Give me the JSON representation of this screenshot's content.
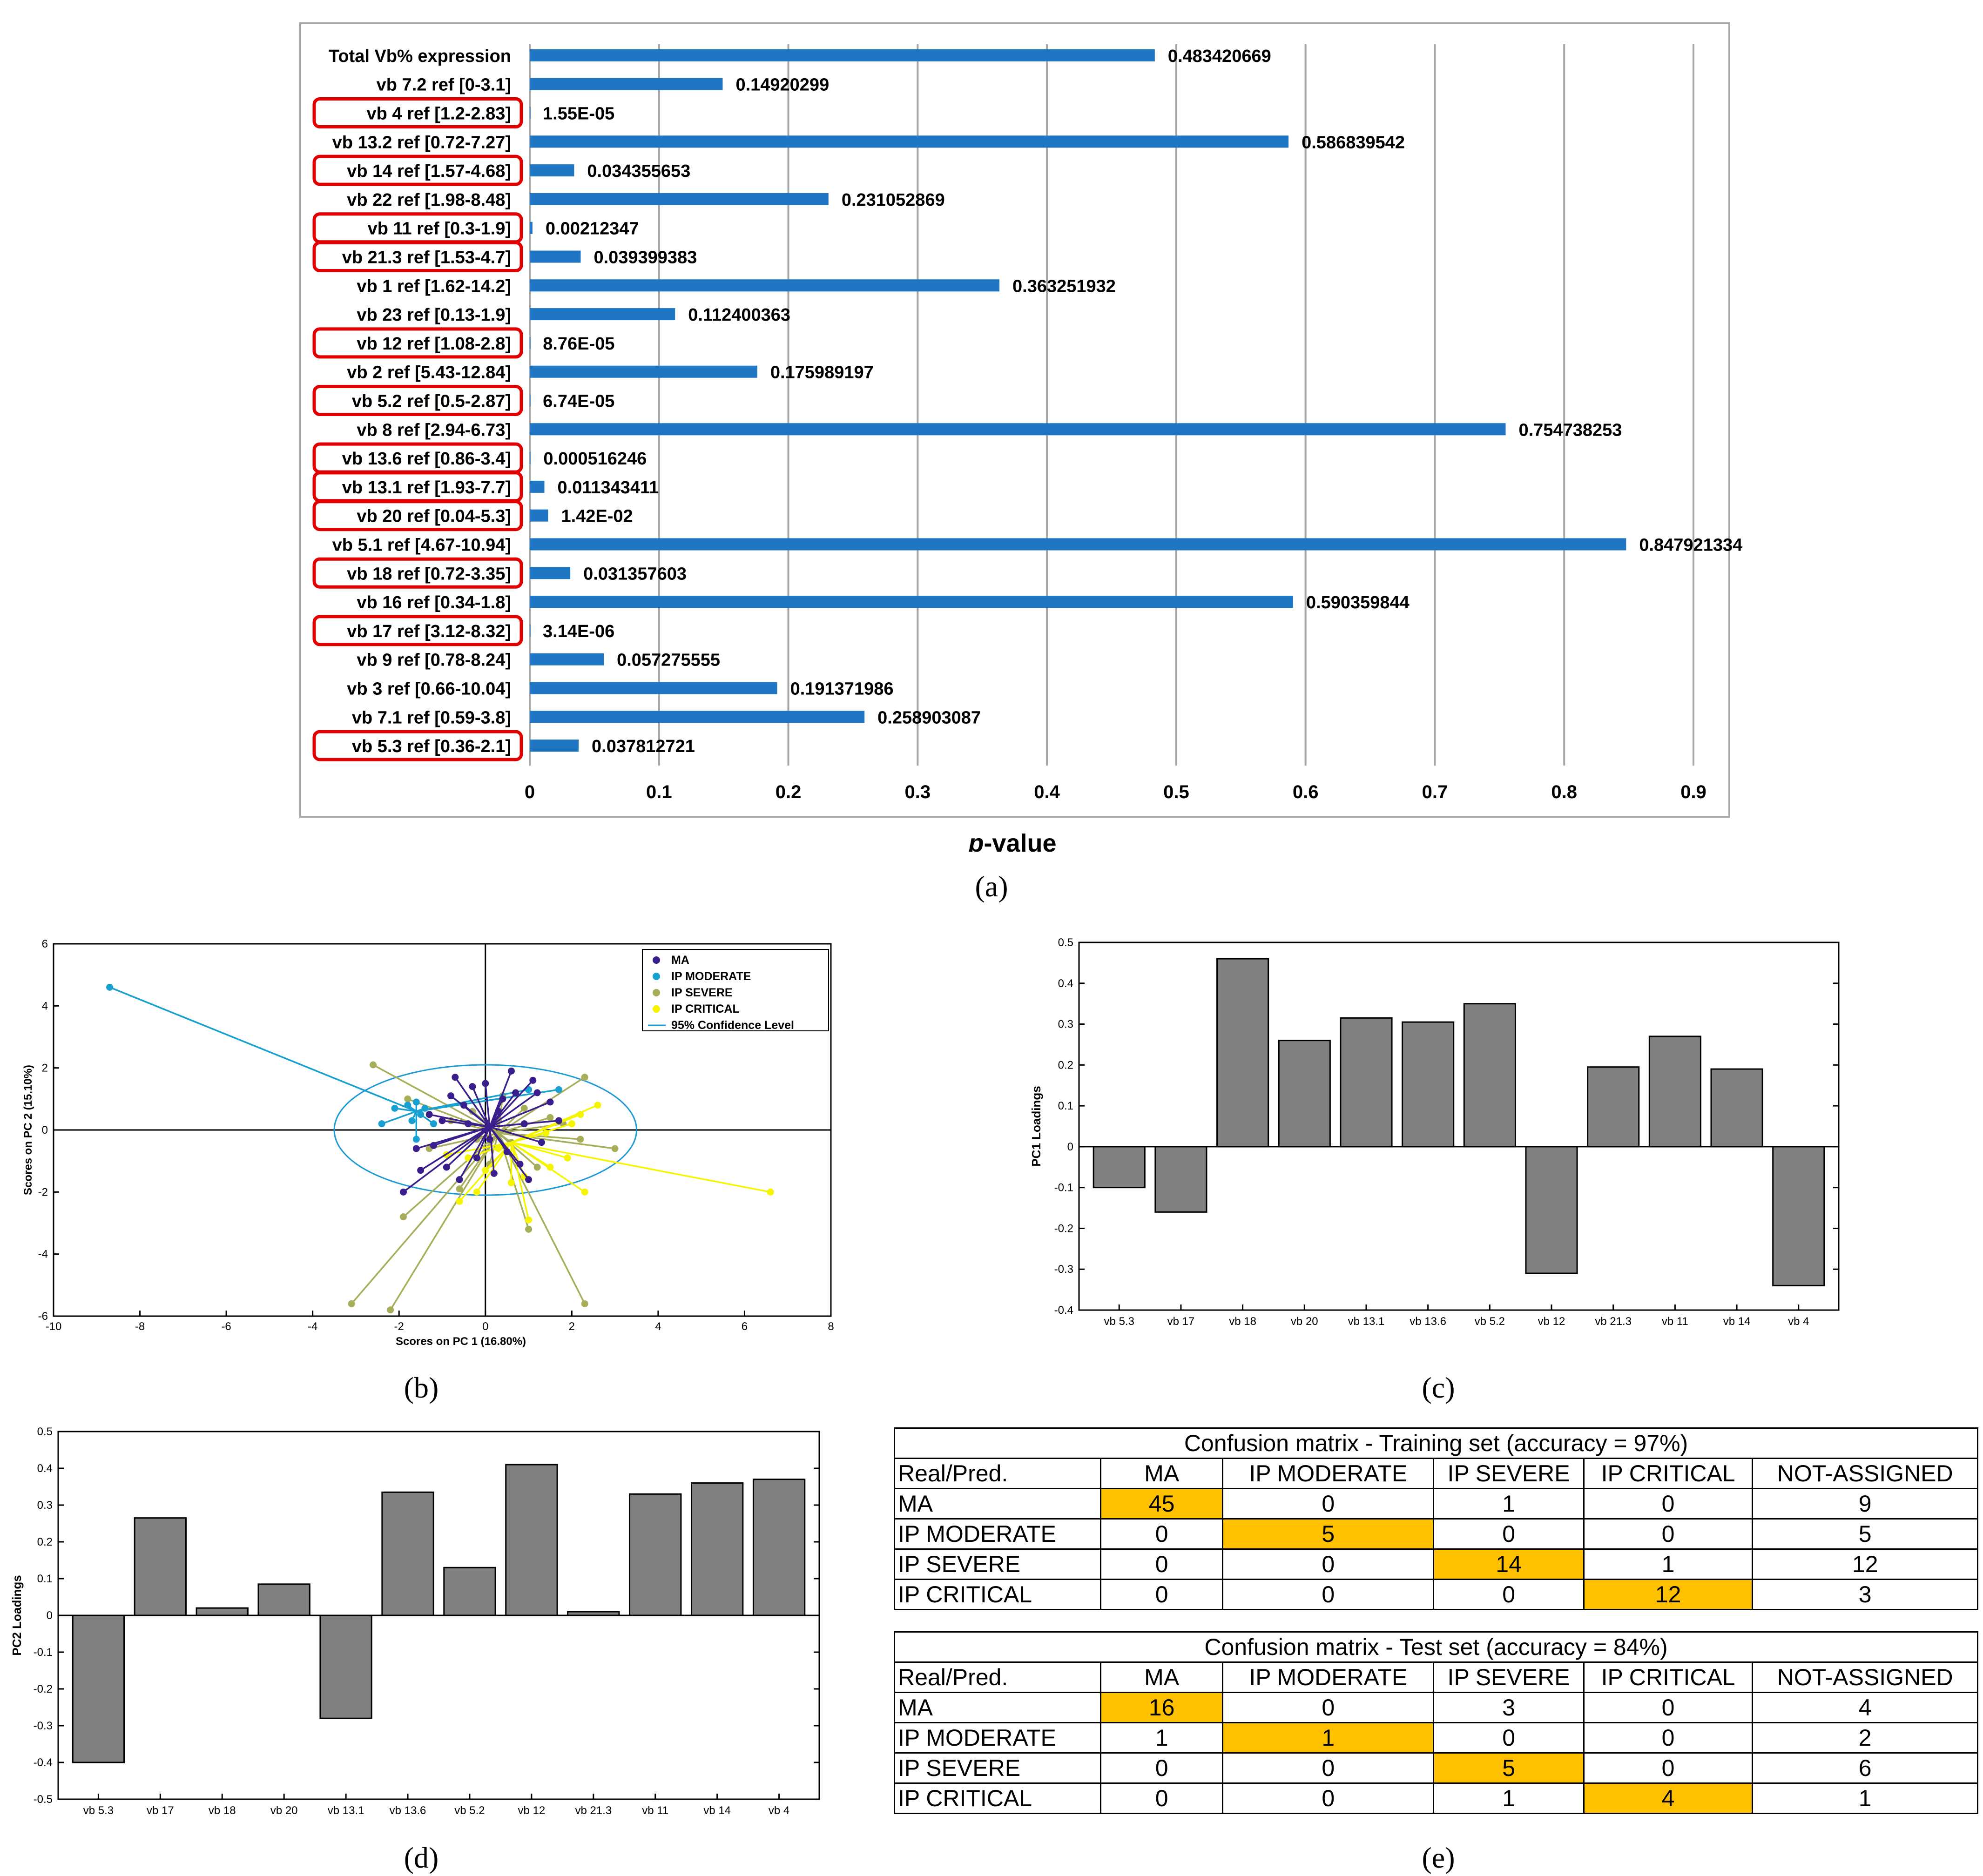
{
  "panel_labels": {
    "a": "(a)",
    "b": "(b)",
    "c": "(c)",
    "d": "(d)",
    "e": "(e)"
  },
  "colors": {
    "bar_blue": "#1f77c4",
    "highlight_red": "#e00000",
    "gray_bar": "#808080",
    "cm_highlight": "#ffc000",
    "MA": "#3a1f8c",
    "IP MODERATE": "#18a0d0",
    "IP SEVERE": "#a8ad5a",
    "IP CRITICAL": "#f5f500",
    "ellipse": "#1e9ad6"
  },
  "chart_data": [
    {
      "id": "a",
      "type": "bar",
      "orientation": "horizontal",
      "xlabel_prefix": "p",
      "xlabel_suffix": "-value",
      "xlim": [
        0,
        0.9
      ],
      "xticks": [
        "0",
        "0.1",
        "0.2",
        "0.3",
        "0.4",
        "0.5",
        "0.6",
        "0.7",
        "0.8",
        "0.9"
      ],
      "categories": [
        "Total Vb% expression",
        "vb 7.2  ref [0-3.1]",
        "vb 4  ref [1.2-2.83]",
        "vb 13.2  ref [0.72-7.27]",
        "vb 14  ref [1.57-4.68]",
        "vb 22  ref [1.98-8.48]",
        "vb 11  ref [0.3-1.9]",
        "vb 21.3  ref [1.53-4.7]",
        "vb 1  ref [1.62-14.2]",
        "vb 23  ref [0.13-1.9]",
        "vb 12  ref [1.08-2.8]",
        "vb 2  ref [5.43-12.84]",
        "vb 5.2  ref [0.5-2.87]",
        "vb 8  ref [2.94-6.73]",
        "vb 13.6  ref [0.86-3.4]",
        "vb 13.1  ref [1.93-7.7]",
        "vb 20 ref [0.04-5.3]",
        "vb 5.1 ref [4.67-10.94]",
        "vb 18 ref [0.72-3.35]",
        "vb 16 ref [0.34-1.8]",
        "vb 17 ref [3.12-8.32]",
        "vb 9 ref [0.78-8.24]",
        "vb 3 ref [0.66-10.04]",
        "vb 7.1 ref [0.59-3.8]",
        "vb 5.3 ref [0.36-2.1]"
      ],
      "values": [
        0.483420669,
        0.14920299,
        1.55e-05,
        0.586839542,
        0.034355653,
        0.231052869,
        0.00212347,
        0.039399383,
        0.363251932,
        0.112400363,
        8.76e-05,
        0.175989197,
        6.74e-05,
        0.754738253,
        0.000516246,
        0.011343411,
        0.0142,
        0.847921334,
        0.031357603,
        0.590359844,
        3.14e-06,
        0.057275555,
        0.191371986,
        0.258903087,
        0.037812721
      ],
      "value_labels": [
        "0.483420669",
        "0.14920299",
        "1.55E-05",
        "0.586839542",
        "0.034355653",
        "0.231052869",
        "0.00212347",
        "0.039399383",
        "0.363251932",
        "0.112400363",
        "8.76E-05",
        "0.175989197",
        "6.74E-05",
        "0.754738253",
        "0.000516246",
        "0.011343411",
        "1.42E-02",
        "0.847921334",
        "0.031357603",
        "0.590359844",
        "3.14E-06",
        "0.057275555",
        "0.191371986",
        "0.258903087",
        "0.037812721"
      ],
      "highlighted": [
        false,
        false,
        true,
        false,
        true,
        false,
        true,
        true,
        false,
        false,
        true,
        false,
        true,
        false,
        true,
        true,
        true,
        false,
        true,
        false,
        true,
        false,
        false,
        false,
        true
      ]
    },
    {
      "id": "b",
      "type": "scatter",
      "xlabel": "Scores on PC 1 (16.80%)",
      "ylabel": "Scores on PC 2 (15.10%)",
      "xlim": [
        -10,
        8
      ],
      "ylim": [
        -6,
        6
      ],
      "xticks": [
        "-10",
        "-8",
        "-6",
        "-4",
        "-2",
        "0",
        "2",
        "4",
        "6",
        "8"
      ],
      "yticks": [
        "-6",
        "-4",
        "-2",
        "0",
        "2",
        "4",
        "6"
      ],
      "legend": [
        "MA",
        "IP MODERATE",
        "IP SEVERE",
        "IP CRITICAL",
        "95% Confidence Level"
      ],
      "legend_position": "top-right",
      "ellipse": {
        "center": [
          0,
          0
        ],
        "radii": [
          3.5,
          2.1
        ]
      },
      "series": [
        {
          "name": "MA",
          "centroid": [
            0.1,
            0.1
          ],
          "points": [
            [
              -1.9,
              -2.0
            ],
            [
              -1.5,
              -1.3
            ],
            [
              -1.2,
              -0.5
            ],
            [
              -1.0,
              0.3
            ],
            [
              -0.8,
              1.1
            ],
            [
              -0.6,
              -1.6
            ],
            [
              -0.5,
              0.8
            ],
            [
              -0.3,
              1.4
            ],
            [
              -0.2,
              -0.9
            ],
            [
              0.0,
              1.5
            ],
            [
              0.1,
              -0.3
            ],
            [
              0.3,
              0.6
            ],
            [
              0.5,
              -0.7
            ],
            [
              0.6,
              1.9
            ],
            [
              0.7,
              1.2
            ],
            [
              0.8,
              -1.1
            ],
            [
              0.9,
              0.2
            ],
            [
              1.1,
              1.6
            ],
            [
              1.3,
              -0.4
            ],
            [
              1.5,
              0.9
            ],
            [
              1.7,
              0.3
            ],
            [
              -0.9,
              -1.2
            ],
            [
              -0.4,
              0.2
            ],
            [
              0.4,
              1.0
            ],
            [
              1.0,
              -1.6
            ],
            [
              -1.3,
              0.5
            ],
            [
              0.2,
              -1.4
            ],
            [
              -0.7,
              1.7
            ],
            [
              1.2,
              1.2
            ],
            [
              -1.6,
              -0.6
            ]
          ]
        },
        {
          "name": "IP MODERATE",
          "centroid": [
            -1.6,
            0.6
          ],
          "points": [
            [
              -8.7,
              4.6
            ],
            [
              -2.4,
              0.2
            ],
            [
              -2.1,
              0.7
            ],
            [
              -1.8,
              0.8
            ],
            [
              -1.6,
              0.9
            ],
            [
              -1.4,
              0.7
            ],
            [
              -1.7,
              0.3
            ],
            [
              -1.5,
              0.5
            ],
            [
              -1.6,
              -0.3
            ],
            [
              -1.2,
              0.2
            ],
            [
              1.0,
              1.3
            ],
            [
              1.7,
              1.3
            ]
          ]
        },
        {
          "name": "IP SEVERE",
          "centroid": [
            0.3,
            -0.1
          ],
          "points": [
            [
              -2.6,
              2.1
            ],
            [
              -3.1,
              -5.6
            ],
            [
              -2.2,
              -5.8
            ],
            [
              2.3,
              -5.6
            ],
            [
              -1.9,
              -2.8
            ],
            [
              -1.8,
              1.0
            ],
            [
              -1.3,
              -0.6
            ],
            [
              -0.8,
              0.3
            ],
            [
              -0.6,
              -1.9
            ],
            [
              -0.3,
              0.6
            ],
            [
              0.1,
              -1.1
            ],
            [
              0.3,
              0.3
            ],
            [
              0.6,
              -0.4
            ],
            [
              0.9,
              0.7
            ],
            [
              1.2,
              -1.2
            ],
            [
              1.5,
              0.4
            ],
            [
              1.8,
              0.2
            ],
            [
              2.2,
              -0.3
            ],
            [
              2.3,
              1.7
            ],
            [
              3.0,
              -0.6
            ],
            [
              1.0,
              -3.2
            ],
            [
              0.4,
              1.1
            ],
            [
              -0.2,
              -0.3
            ]
          ]
        },
        {
          "name": "IP CRITICAL",
          "centroid": [
            0.6,
            -0.4
          ],
          "points": [
            [
              6.6,
              -2.0
            ],
            [
              2.6,
              0.8
            ],
            [
              2.3,
              -2.0
            ],
            [
              1.0,
              -2.9
            ],
            [
              -0.6,
              -2.3
            ],
            [
              0.9,
              -1.5
            ],
            [
              1.5,
              -1.2
            ],
            [
              2.0,
              0.2
            ],
            [
              -0.4,
              -0.9
            ],
            [
              0.0,
              -1.3
            ],
            [
              0.6,
              -1.7
            ],
            [
              1.4,
              -0.1
            ],
            [
              -0.2,
              -2.0
            ],
            [
              1.9,
              -0.9
            ],
            [
              2.2,
              0.5
            ],
            [
              0.3,
              -0.6
            ],
            [
              -0.9,
              -0.8
            ]
          ]
        }
      ]
    },
    {
      "id": "c",
      "type": "bar",
      "ylabel": "PC1 Loadings",
      "ylim": [
        -0.4,
        0.5
      ],
      "yticks": [
        "-0.4",
        "-0.3",
        "-0.2",
        "-0.1",
        "0",
        "0.1",
        "0.2",
        "0.3",
        "0.4",
        "0.5"
      ],
      "categories": [
        "vb 5.3",
        "vb 17",
        "vb 18",
        "vb 20",
        "vb 13.1",
        "vb 13.6",
        "vb 5.2",
        "vb 12",
        "vb 21.3",
        "vb 11",
        "vb 14",
        "vb 4"
      ],
      "values": [
        -0.1,
        -0.16,
        0.46,
        0.26,
        0.315,
        0.305,
        0.35,
        -0.31,
        0.195,
        0.27,
        0.19,
        -0.34
      ]
    },
    {
      "id": "d",
      "type": "bar",
      "ylabel": "PC2 Loadings",
      "ylim": [
        -0.5,
        0.5
      ],
      "yticks": [
        "-0.5",
        "-0.4",
        "-0.3",
        "-0.2",
        "-0.1",
        "0",
        "0.1",
        "0.2",
        "0.3",
        "0.4",
        "0.5"
      ],
      "categories": [
        "vb 5.3",
        "vb 17",
        "vb 18",
        "vb 20",
        "vb 13.1",
        "vb 13.6",
        "vb 5.2",
        "vb 12",
        "vb 21.3",
        "vb 11",
        "vb 14",
        "vb 4"
      ],
      "values": [
        -0.4,
        0.265,
        0.02,
        0.085,
        -0.28,
        0.335,
        0.13,
        0.41,
        0.01,
        0.33,
        0.36,
        0.37
      ]
    }
  ],
  "confusion_matrices": [
    {
      "title": "Confusion matrix - Training set (accuracy = 97%)",
      "corner": "Real/Pred.",
      "columns": [
        "MA",
        "IP MODERATE",
        "IP SEVERE",
        "IP CRITICAL",
        "NOT-ASSIGNED"
      ],
      "rows": [
        {
          "label": "MA",
          "values": [
            "45",
            "0",
            "1",
            "0",
            "9"
          ],
          "hl": 0
        },
        {
          "label": "IP MODERATE",
          "values": [
            "0",
            "5",
            "0",
            "0",
            "5"
          ],
          "hl": 1
        },
        {
          "label": "IP SEVERE",
          "values": [
            "0",
            "0",
            "14",
            "1",
            "12"
          ],
          "hl": 2
        },
        {
          "label": "IP CRITICAL",
          "values": [
            "0",
            "0",
            "0",
            "12",
            "3"
          ],
          "hl": 3
        }
      ]
    },
    {
      "title": "Confusion matrix - Test set (accuracy = 84%)",
      "corner": "Real/Pred.",
      "columns": [
        "MA",
        "IP MODERATE",
        "IP SEVERE",
        "IP CRITICAL",
        "NOT-ASSIGNED"
      ],
      "rows": [
        {
          "label": "MA",
          "values": [
            "16",
            "0",
            "3",
            "0",
            "4"
          ],
          "hl": 0
        },
        {
          "label": "IP MODERATE",
          "values": [
            "1",
            "1",
            "0",
            "0",
            "2"
          ],
          "hl": 1
        },
        {
          "label": "IP SEVERE",
          "values": [
            "0",
            "0",
            "5",
            "0",
            "6"
          ],
          "hl": 2
        },
        {
          "label": "IP CRITICAL",
          "values": [
            "0",
            "0",
            "1",
            "4",
            "1"
          ],
          "hl": 3
        }
      ]
    }
  ]
}
